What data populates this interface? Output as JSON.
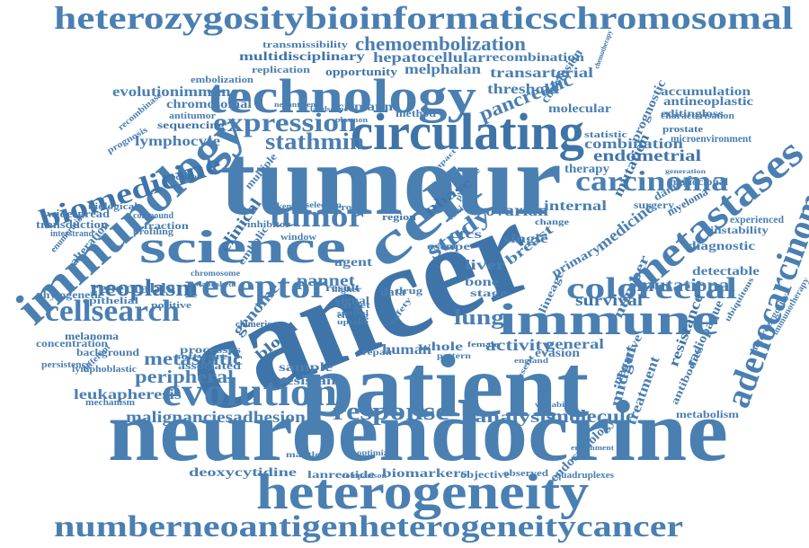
{
  "cloud": {
    "colors": {
      "primary": "#4a7fb2",
      "secondary": "#3f74a8"
    },
    "words": [
      {
        "text": "heterozygositybioinformaticschromosomal",
        "size": "large"
      },
      {
        "text": "numberneoantigenheterogeneitycancer",
        "size": "large"
      },
      {
        "text": "neuroendocrine",
        "size": "huge"
      },
      {
        "text": "cancer",
        "size": "huge"
      },
      {
        "text": "tumour",
        "size": "huge"
      },
      {
        "text": "patient",
        "size": "huge"
      },
      {
        "text": "technology",
        "size": "large"
      },
      {
        "text": "heterogeneity",
        "size": "large"
      },
      {
        "text": "science",
        "size": "large"
      },
      {
        "text": "immunology",
        "size": "large"
      },
      {
        "text": "circulating",
        "size": "large"
      },
      {
        "text": "immune",
        "size": "large"
      },
      {
        "text": "evolution",
        "size": "large"
      },
      {
        "text": "metastases",
        "size": "large"
      },
      {
        "text": "adenocarcinoma",
        "size": "large"
      },
      {
        "text": "cell",
        "size": "large"
      },
      {
        "text": "receptor",
        "size": "medium"
      },
      {
        "text": "biomedicine",
        "size": "medium"
      },
      {
        "text": "tumor",
        "size": "medium"
      },
      {
        "text": "colorectal",
        "size": "medium"
      },
      {
        "text": "cellsearch",
        "size": "medium"
      },
      {
        "text": "carcinoma",
        "size": "medium"
      },
      {
        "text": "expression",
        "size": "medium"
      },
      {
        "text": "response",
        "size": "medium"
      },
      {
        "text": "neoplasm",
        "size": "medium"
      },
      {
        "text": "lung",
        "size": "medium"
      },
      {
        "text": "study",
        "size": "medium"
      },
      {
        "text": "stathmin",
        "size": "medium"
      },
      {
        "text": "chemoembolization",
        "size": "small"
      },
      {
        "text": "pancreatic",
        "size": "small"
      },
      {
        "text": "mutational",
        "size": "small"
      },
      {
        "text": "survival",
        "size": "small"
      },
      {
        "text": "peripheral",
        "size": "small"
      },
      {
        "text": "metastatic",
        "size": "small"
      },
      {
        "text": "malignanciesadhesion",
        "size": "small"
      },
      {
        "text": "analysis",
        "size": "small"
      },
      {
        "text": "molecule",
        "size": "small"
      },
      {
        "text": "activity",
        "size": "small"
      },
      {
        "text": "endometrial",
        "size": "small"
      },
      {
        "text": "combination",
        "size": "small"
      },
      {
        "text": "evolutionimmune",
        "size": "small"
      },
      {
        "text": "leukapheresis",
        "size": "small"
      },
      {
        "text": "deoxycytidine",
        "size": "small"
      },
      {
        "text": "biomarkers",
        "size": "small"
      },
      {
        "text": "lanreotide",
        "size": "small"
      },
      {
        "text": "multidisciplinary",
        "size": "small"
      },
      {
        "text": "hepatocellular",
        "size": "small"
      },
      {
        "text": "melphalan",
        "size": "small"
      },
      {
        "text": "transarterial",
        "size": "small"
      },
      {
        "text": "recombination",
        "size": "small"
      },
      {
        "text": "lymphocyte",
        "size": "small"
      },
      {
        "text": "chromosomal",
        "size": "small"
      },
      {
        "text": "sequencing",
        "size": "small"
      },
      {
        "text": "antitumor",
        "size": "small"
      },
      {
        "text": "cisplatin",
        "size": "small"
      },
      {
        "text": "method",
        "size": "small"
      },
      {
        "text": "molecular",
        "size": "small"
      },
      {
        "text": "threshold",
        "size": "small"
      },
      {
        "text": "transmissibility",
        "size": "small"
      },
      {
        "text": "opportunity",
        "size": "small"
      },
      {
        "text": "replication",
        "size": "small"
      },
      {
        "text": "embolization",
        "size": "small"
      },
      {
        "text": "neoantigens",
        "size": "small"
      },
      {
        "text": "ovarian",
        "size": "small"
      },
      {
        "text": "internal",
        "size": "small"
      },
      {
        "text": "single",
        "size": "small"
      },
      {
        "text": "phase",
        "size": "small"
      },
      {
        "text": "liver",
        "size": "small"
      },
      {
        "text": "bone",
        "size": "small"
      },
      {
        "text": "stage",
        "size": "small"
      },
      {
        "text": "breast",
        "size": "small"
      },
      {
        "text": "primary",
        "size": "small"
      },
      {
        "text": "ctcs",
        "size": "small"
      },
      {
        "text": "clinical",
        "size": "small"
      },
      {
        "text": "pannet",
        "size": "small"
      },
      {
        "text": "agent",
        "size": "small"
      },
      {
        "text": "resectable",
        "size": "small"
      },
      {
        "text": "epithelial",
        "size": "small"
      },
      {
        "text": "phylogenetic",
        "size": "small"
      },
      {
        "text": "genome",
        "size": "small"
      },
      {
        "text": "blood",
        "size": "small"
      },
      {
        "text": "sample",
        "size": "small"
      },
      {
        "text": "resistant",
        "size": "small"
      },
      {
        "text": "processes",
        "size": "small"
      },
      {
        "text": "software",
        "size": "small"
      },
      {
        "text": "associated",
        "size": "small"
      },
      {
        "text": "background",
        "size": "small"
      },
      {
        "text": "melanoma",
        "size": "small"
      },
      {
        "text": "concentration",
        "size": "small"
      },
      {
        "text": "lymphoblastic",
        "size": "small"
      },
      {
        "text": "mechanism",
        "size": "small"
      },
      {
        "text": "persistence",
        "size": "small"
      },
      {
        "text": "different",
        "size": "small"
      },
      {
        "text": "alteration",
        "size": "small"
      },
      {
        "text": "enumeration",
        "size": "small"
      },
      {
        "text": "interstrand",
        "size": "small"
      },
      {
        "text": "transduction",
        "size": "small"
      },
      {
        "text": "widespread",
        "size": "small"
      },
      {
        "text": "biological",
        "size": "small"
      },
      {
        "text": "prognosis",
        "size": "small"
      },
      {
        "text": "recombinase",
        "size": "small"
      },
      {
        "text": "subclonal",
        "size": "small"
      },
      {
        "text": "compound",
        "size": "small"
      },
      {
        "text": "fraction",
        "size": "small"
      },
      {
        "text": "profiling",
        "size": "small"
      },
      {
        "text": "multiple",
        "size": "small"
      },
      {
        "text": "leukemia",
        "size": "small"
      },
      {
        "text": "verona",
        "size": "small"
      },
      {
        "text": "region",
        "size": "small"
      },
      {
        "text": "embolic",
        "size": "small"
      },
      {
        "text": "inhibitor",
        "size": "small"
      },
      {
        "text": "window",
        "size": "small"
      },
      {
        "text": "chromosome",
        "size": "small"
      },
      {
        "text": "positive",
        "size": "small"
      },
      {
        "text": "established",
        "size": "small"
      },
      {
        "text": "chimeric",
        "size": "small"
      },
      {
        "text": "human",
        "size": "small"
      },
      {
        "text": "whole",
        "size": "small"
      },
      {
        "text": "general",
        "size": "small"
      },
      {
        "text": "evasion",
        "size": "small"
      },
      {
        "text": "medicine",
        "size": "small"
      },
      {
        "text": "number",
        "size": "small"
      },
      {
        "text": "mutation",
        "size": "small"
      },
      {
        "text": "therapy",
        "size": "small"
      },
      {
        "text": "prognostic",
        "size": "small"
      },
      {
        "text": "conclusion",
        "size": "small"
      },
      {
        "text": "accumulation",
        "size": "small"
      },
      {
        "text": "antineoplastic",
        "size": "small"
      },
      {
        "text": "editingloss",
        "size": "small"
      },
      {
        "text": "prostate",
        "size": "small"
      },
      {
        "text": "microenvironment",
        "size": "small"
      },
      {
        "text": "characterisation",
        "size": "small"
      },
      {
        "text": "statistic",
        "size": "small"
      },
      {
        "text": "monoclonal",
        "size": "small"
      },
      {
        "text": "surgery",
        "size": "small"
      },
      {
        "text": "damage",
        "size": "small"
      },
      {
        "text": "myeloma",
        "size": "small"
      },
      {
        "text": "experienced",
        "size": "small"
      },
      {
        "text": "instability",
        "size": "small"
      },
      {
        "text": "diagnostic",
        "size": "small"
      },
      {
        "text": "detectable",
        "size": "small"
      },
      {
        "text": "treatment",
        "size": "small"
      },
      {
        "text": "midgut",
        "size": "small"
      },
      {
        "text": "resistance",
        "size": "small"
      },
      {
        "text": "radiopaque",
        "size": "small"
      },
      {
        "text": "antibodies",
        "size": "small"
      },
      {
        "text": "metabolism",
        "size": "small"
      },
      {
        "text": "negative",
        "size": "small"
      },
      {
        "text": "heterozygosity",
        "size": "small"
      },
      {
        "text": "immunotherapy",
        "size": "small"
      },
      {
        "text": "ubiquitous",
        "size": "small"
      },
      {
        "text": "endocrinology",
        "size": "small"
      },
      {
        "text": "objective",
        "size": "small"
      },
      {
        "text": "observed",
        "size": "small"
      },
      {
        "text": "quadruplexes",
        "size": "small"
      },
      {
        "text": "optimized",
        "size": "small"
      },
      {
        "text": "mantle",
        "size": "small"
      },
      {
        "text": "chemotherapy",
        "size": "small"
      },
      {
        "text": "landscape",
        "size": "small"
      },
      {
        "text": "plasmon",
        "size": "small"
      },
      {
        "text": "presence",
        "size": "small"
      },
      {
        "text": "impact",
        "size": "small"
      },
      {
        "text": "uptake",
        "size": "small"
      },
      {
        "text": "spatial",
        "size": "small"
      },
      {
        "text": "eluting",
        "size": "small"
      },
      {
        "text": "safety",
        "size": "small"
      },
      {
        "text": "toxicity",
        "size": "small"
      },
      {
        "text": "escape",
        "size": "small"
      },
      {
        "text": "event",
        "size": "small"
      },
      {
        "text": "lineage",
        "size": "small"
      },
      {
        "text": "data",
        "size": "small"
      },
      {
        "text": "result",
        "size": "small"
      },
      {
        "text": "signal",
        "size": "small"
      },
      {
        "text": "target",
        "size": "small"
      },
      {
        "text": "higher",
        "size": "small"
      },
      {
        "text": "drug",
        "size": "small"
      },
      {
        "text": "pattern",
        "size": "small"
      },
      {
        "text": "repair",
        "size": "small"
      },
      {
        "text": "female",
        "size": "small"
      },
      {
        "text": "england",
        "size": "small"
      },
      {
        "text": "present",
        "size": "small"
      },
      {
        "text": "variability",
        "size": "small"
      },
      {
        "text": "comparison",
        "size": "small"
      },
      {
        "text": "enrichment",
        "size": "small"
      },
      {
        "text": "generation",
        "size": "small"
      },
      {
        "text": "change",
        "size": "small"
      },
      {
        "text": "selection",
        "size": "small"
      }
    ]
  }
}
